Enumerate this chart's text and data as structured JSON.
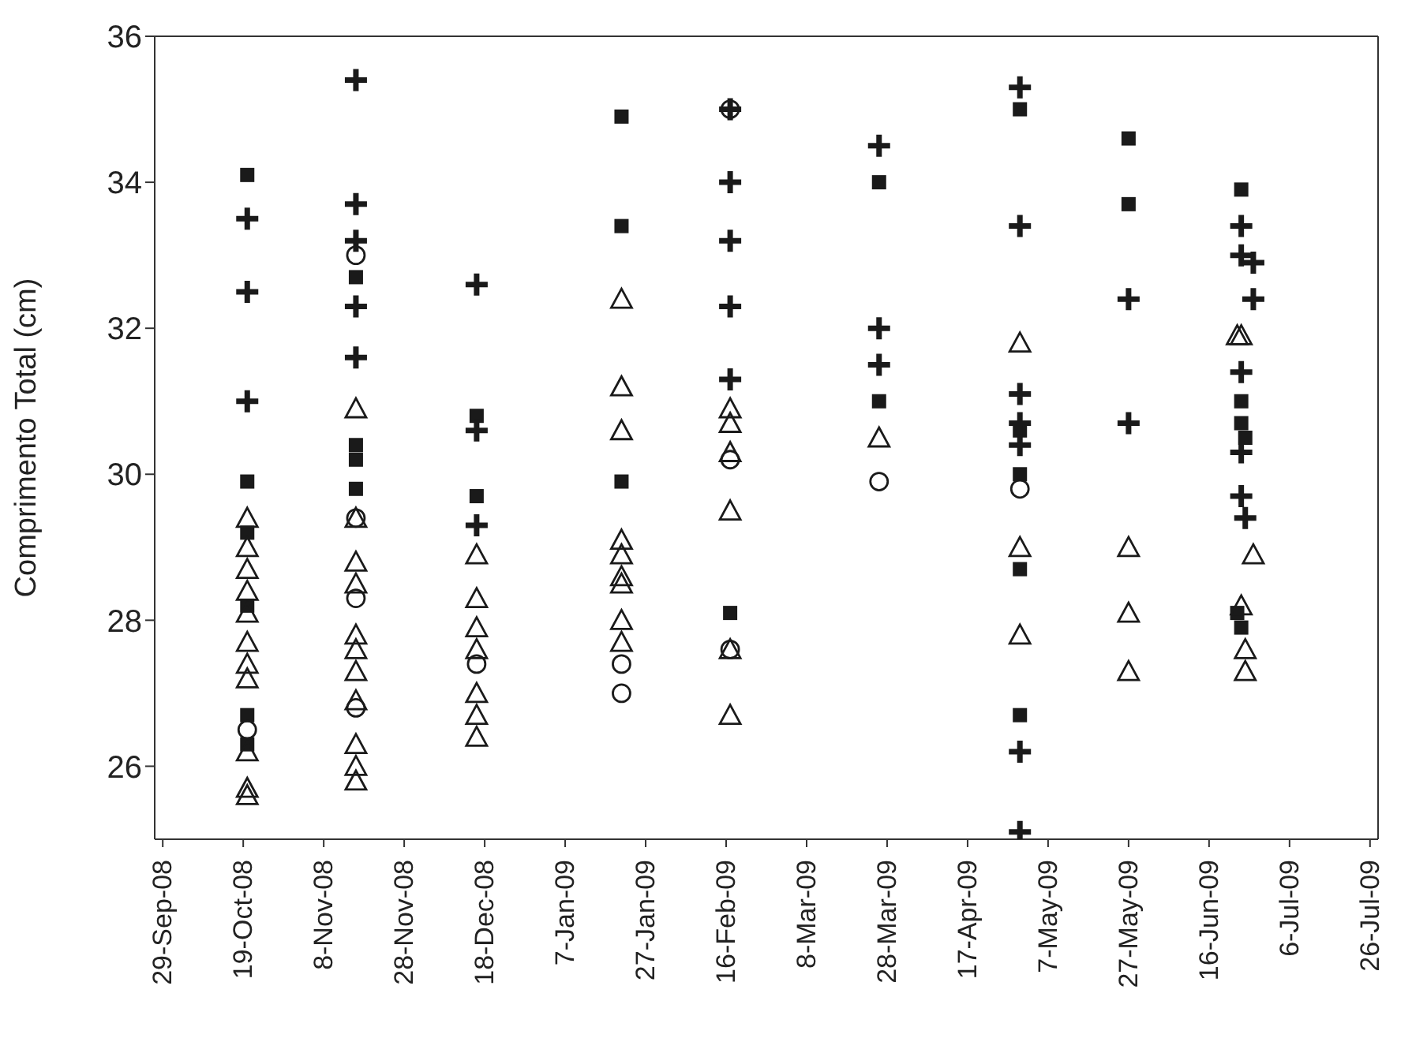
{
  "chart_data": {
    "type": "scatter",
    "ylabel": "Comprimento Total (cm)",
    "xlim": [
      "2008-09-27",
      "2009-07-28"
    ],
    "xticks": [
      {
        "value": "2008-09-29",
        "label": "29-Sep-08"
      },
      {
        "value": "2008-10-19",
        "label": "19-Oct-08"
      },
      {
        "value": "2008-11-08",
        "label": "8-Nov-08"
      },
      {
        "value": "2008-11-28",
        "label": "28-Nov-08"
      },
      {
        "value": "2008-12-18",
        "label": "18-Dec-08"
      },
      {
        "value": "2009-01-07",
        "label": "7-Jan-09"
      },
      {
        "value": "2009-01-27",
        "label": "27-Jan-09"
      },
      {
        "value": "2009-02-16",
        "label": "16-Feb-09"
      },
      {
        "value": "2009-03-08",
        "label": "8-Mar-09"
      },
      {
        "value": "2009-03-28",
        "label": "28-Mar-09"
      },
      {
        "value": "2009-04-17",
        "label": "17-Apr-09"
      },
      {
        "value": "2009-05-07",
        "label": "7-May-09"
      },
      {
        "value": "2009-05-27",
        "label": "27-May-09"
      },
      {
        "value": "2009-06-16",
        "label": "16-Jun-09"
      },
      {
        "value": "2009-07-06",
        "label": "6-Jul-09"
      },
      {
        "value": "2009-07-26",
        "label": "26-Jul-09"
      }
    ],
    "ylim": [
      25,
      36
    ],
    "yticks": [
      26,
      28,
      30,
      32,
      34,
      36
    ],
    "grid": false,
    "legend": false,
    "series": [
      {
        "marker": "square",
        "color": "#1a1a1a",
        "x": [
          "2008-10-20",
          "2008-10-20",
          "2008-10-20",
          "2008-10-20",
          "2008-10-20",
          "2008-10-20",
          "2008-11-16",
          "2008-11-16",
          "2008-11-16",
          "2008-11-16",
          "2008-12-16",
          "2008-12-16",
          "2009-01-21",
          "2009-01-21",
          "2009-01-21",
          "2009-02-17",
          "2009-03-26",
          "2009-03-26",
          "2009-04-30",
          "2009-04-30",
          "2009-04-30",
          "2009-04-30",
          "2009-04-30",
          "2009-05-27",
          "2009-05-27",
          "2009-06-24",
          "2009-06-24",
          "2009-06-24",
          "2009-06-25",
          "2009-06-23",
          "2009-06-24"
        ],
        "values": [
          34.1,
          29.9,
          29.2,
          28.2,
          26.7,
          26.3,
          32.7,
          30.4,
          30.2,
          29.8,
          30.8,
          29.7,
          34.9,
          33.4,
          29.9,
          28.1,
          34.0,
          31.0,
          35.0,
          30.6,
          30.0,
          28.7,
          26.7,
          34.6,
          33.7,
          33.9,
          31.0,
          30.7,
          30.5,
          28.1,
          27.9
        ]
      },
      {
        "marker": "cross",
        "color": "#1a1a1a",
        "x": [
          "2008-10-20",
          "2008-10-20",
          "2008-10-20",
          "2008-11-16",
          "2008-11-16",
          "2008-11-16",
          "2008-11-16",
          "2008-11-16",
          "2008-12-16",
          "2008-12-16",
          "2008-12-16",
          "2009-02-17",
          "2009-02-17",
          "2009-02-17",
          "2009-02-17",
          "2009-02-17",
          "2009-03-26",
          "2009-03-26",
          "2009-03-26",
          "2009-04-30",
          "2009-04-30",
          "2009-04-30",
          "2009-04-30",
          "2009-04-30",
          "2009-04-30",
          "2009-04-30",
          "2009-05-27",
          "2009-05-27",
          "2009-06-24",
          "2009-06-24",
          "2009-06-27",
          "2009-06-27",
          "2009-06-24",
          "2009-06-24",
          "2009-06-24",
          "2009-06-25"
        ],
        "values": [
          33.5,
          32.5,
          31.0,
          35.4,
          33.7,
          33.2,
          32.3,
          31.6,
          32.6,
          30.6,
          29.3,
          35.0,
          34.0,
          33.2,
          32.3,
          31.3,
          34.5,
          32.0,
          31.5,
          35.3,
          33.4,
          31.1,
          30.7,
          30.4,
          26.2,
          25.1,
          32.4,
          30.7,
          33.4,
          33.0,
          32.9,
          32.4,
          31.4,
          30.3,
          29.7,
          29.4
        ]
      },
      {
        "marker": "triangle",
        "color": "#1a1a1a",
        "x": [
          "2008-10-20",
          "2008-10-20",
          "2008-10-20",
          "2008-10-20",
          "2008-10-20",
          "2008-10-20",
          "2008-10-20",
          "2008-10-20",
          "2008-10-20",
          "2008-10-20",
          "2008-10-20",
          "2008-11-16",
          "2008-11-16",
          "2008-11-16",
          "2008-11-16",
          "2008-11-16",
          "2008-11-16",
          "2008-11-16",
          "2008-11-16",
          "2008-11-16",
          "2008-11-16",
          "2008-11-16",
          "2008-12-16",
          "2008-12-16",
          "2008-12-16",
          "2008-12-16",
          "2008-12-16",
          "2008-12-16",
          "2008-12-16",
          "2009-01-21",
          "2009-01-21",
          "2009-01-21",
          "2009-01-21",
          "2009-01-21",
          "2009-01-21",
          "2009-01-21",
          "2009-01-21",
          "2009-01-21",
          "2009-02-17",
          "2009-02-17",
          "2009-02-17",
          "2009-02-17",
          "2009-02-17",
          "2009-02-17",
          "2009-03-26",
          "2009-04-30",
          "2009-04-30",
          "2009-04-30",
          "2009-05-27",
          "2009-05-27",
          "2009-05-27",
          "2009-06-23",
          "2009-06-24",
          "2009-06-27",
          "2009-06-24",
          "2009-06-25",
          "2009-06-25"
        ],
        "values": [
          29.4,
          29.0,
          28.7,
          28.4,
          28.1,
          27.7,
          27.4,
          27.2,
          26.2,
          25.7,
          25.6,
          30.9,
          29.4,
          28.8,
          28.5,
          27.8,
          27.6,
          27.3,
          26.9,
          26.3,
          26.0,
          25.8,
          28.9,
          28.3,
          27.9,
          27.6,
          27.0,
          26.7,
          26.4,
          32.4,
          31.2,
          30.6,
          29.1,
          28.9,
          28.6,
          28.5,
          28.0,
          27.7,
          30.9,
          30.7,
          30.3,
          29.5,
          27.6,
          26.7,
          30.5,
          31.8,
          29.0,
          27.8,
          29.0,
          28.1,
          27.3,
          31.9,
          31.9,
          28.9,
          28.2,
          27.6,
          27.3
        ]
      },
      {
        "marker": "circle",
        "color": "#1a1a1a",
        "x": [
          "2008-10-20",
          "2008-11-16",
          "2008-11-16",
          "2008-11-16",
          "2008-11-16",
          "2008-12-16",
          "2009-01-21",
          "2009-01-21",
          "2009-02-17",
          "2009-02-17",
          "2009-02-17",
          "2009-03-26",
          "2009-04-30"
        ],
        "values": [
          26.5,
          33.0,
          29.4,
          28.3,
          26.8,
          27.4,
          27.4,
          27.0,
          35.0,
          30.2,
          27.6,
          29.9,
          29.8
        ]
      }
    ]
  }
}
